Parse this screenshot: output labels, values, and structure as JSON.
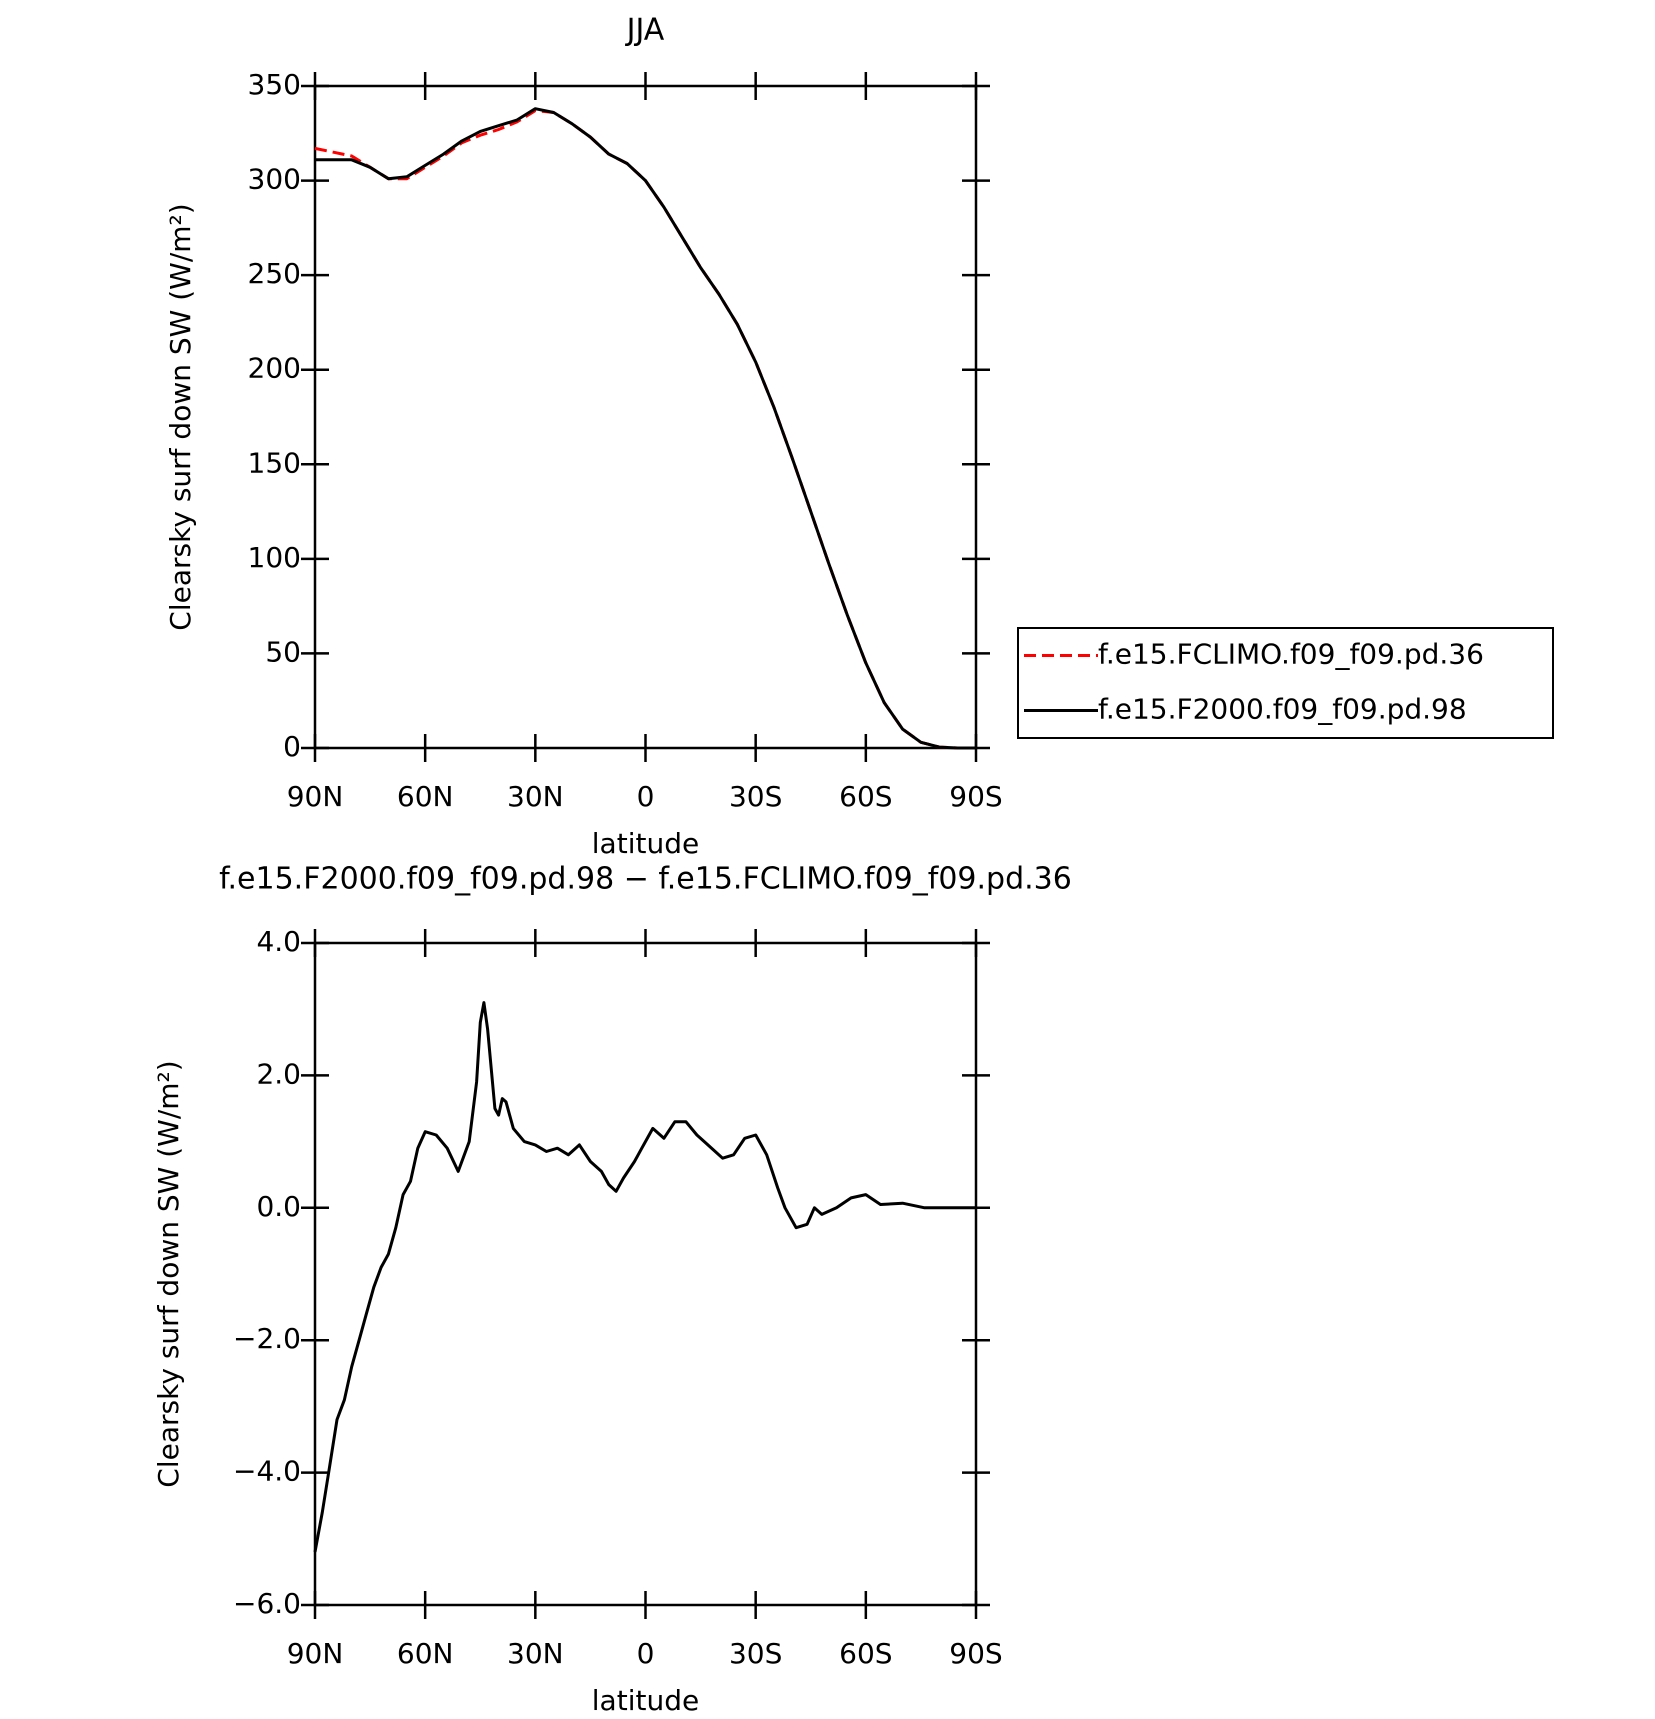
{
  "chart_data": [
    {
      "type": "line",
      "title": "JJA",
      "xlabel": "latitude",
      "ylabel": "Clearsky surf down SW (W/m²)",
      "x": [
        90,
        85,
        80,
        75,
        70,
        65,
        60,
        55,
        50,
        45,
        40,
        35,
        30,
        25,
        20,
        15,
        10,
        5,
        0,
        -5,
        -10,
        -15,
        -20,
        -25,
        -30,
        -35,
        -40,
        -45,
        -50,
        -55,
        -60,
        -65,
        -70,
        -75,
        -80,
        -85,
        -90
      ],
      "series": [
        {
          "name": "f.e15.FCLIMO.f09_f09.pd.36",
          "color": "#ff0000",
          "dash": true,
          "values": [
            317,
            315,
            313,
            307,
            301,
            301,
            307,
            313,
            320,
            324,
            327,
            331,
            337,
            336,
            330,
            323,
            314,
            309,
            300,
            286,
            270,
            254,
            240,
            224,
            204,
            180,
            153,
            125,
            97,
            70,
            45,
            24,
            10,
            3,
            0.5,
            0,
            0
          ]
        },
        {
          "name": "f.e15.F2000.f09_f09.pd.98",
          "color": "#000000",
          "dash": false,
          "values": [
            311,
            311,
            311,
            307,
            301,
            302,
            308,
            314,
            321,
            326,
            329,
            332,
            338,
            336,
            330,
            323,
            314,
            309,
            300,
            286,
            270,
            254,
            240,
            224,
            204,
            180,
            153,
            125,
            97,
            70,
            45,
            24,
            10,
            3,
            0.5,
            0,
            0
          ]
        }
      ],
      "xlim": [
        90,
        -90
      ],
      "xticks": [
        {
          "value": 90,
          "label": "90N"
        },
        {
          "value": 60,
          "label": "60N"
        },
        {
          "value": 30,
          "label": "30N"
        },
        0,
        {
          "value": -30,
          "label": "30S"
        },
        {
          "value": -60,
          "label": "60S"
        },
        {
          "value": -90,
          "label": "90S"
        }
      ],
      "ylim": [
        0,
        350
      ],
      "yticks": [
        0,
        50,
        100,
        150,
        200,
        250,
        300,
        350
      ],
      "legend": "right"
    },
    {
      "type": "line",
      "title": "f.e15.F2000.f09_f09.pd.98 − f.e15.FCLIMO.f09_f09.pd.36",
      "xlabel": "latitude",
      "ylabel": "Clearsky surf down SW (W/m²)",
      "x": [
        90,
        88,
        86,
        84,
        82,
        80,
        78,
        76,
        74,
        72,
        70,
        68,
        66,
        64,
        62,
        60,
        57,
        54,
        51,
        48,
        46,
        45,
        44,
        43,
        41,
        40,
        39,
        38,
        36,
        33,
        30,
        27,
        24,
        21,
        18,
        15,
        12,
        10,
        8,
        6,
        3,
        1,
        -2,
        -5,
        -8,
        -11,
        -14,
        -18,
        -21,
        -24,
        -27,
        -30,
        -33,
        -36,
        -38,
        -41,
        -44,
        -46,
        -48,
        -52,
        -56,
        -60,
        -64,
        -70,
        -76,
        -90
      ],
      "values": [
        -5.2,
        -4.6,
        -3.9,
        -3.2,
        -2.9,
        -2.4,
        -2.0,
        -1.6,
        -1.2,
        -0.9,
        -0.7,
        -0.3,
        0.2,
        0.4,
        0.9,
        1.15,
        1.1,
        0.9,
        0.55,
        1.0,
        1.9,
        2.8,
        3.1,
        2.7,
        1.5,
        1.4,
        1.65,
        1.6,
        1.2,
        1.0,
        0.95,
        0.85,
        0.9,
        0.8,
        0.95,
        0.7,
        0.55,
        0.35,
        0.25,
        0.45,
        0.7,
        0.9,
        1.2,
        1.05,
        1.3,
        1.3,
        1.1,
        0.9,
        0.75,
        0.8,
        1.05,
        1.1,
        0.8,
        0.3,
        0.0,
        -0.3,
        -0.25,
        0.0,
        -0.1,
        0.0,
        0.15,
        0.2,
        0.05,
        0.07,
        0.0,
        0.0
      ],
      "color": "#000000",
      "xlim": [
        90,
        -90
      ],
      "xticks": [
        {
          "value": 90,
          "label": "90N"
        },
        {
          "value": 60,
          "label": "60N"
        },
        {
          "value": 30,
          "label": "30N"
        },
        0,
        {
          "value": -30,
          "label": "30S"
        },
        {
          "value": -60,
          "label": "60S"
        },
        {
          "value": -90,
          "label": "90S"
        }
      ],
      "ylim": [
        -6,
        4
      ],
      "yticks": [
        {
          "value": -6,
          "label": "−6.0"
        },
        {
          "value": -4,
          "label": "−4.0"
        },
        {
          "value": -2,
          "label": "−2.0"
        },
        {
          "value": 0,
          "label": "0.0"
        },
        {
          "value": 2,
          "label": "2.0"
        },
        {
          "value": 4,
          "label": "4.0"
        }
      ]
    }
  ]
}
